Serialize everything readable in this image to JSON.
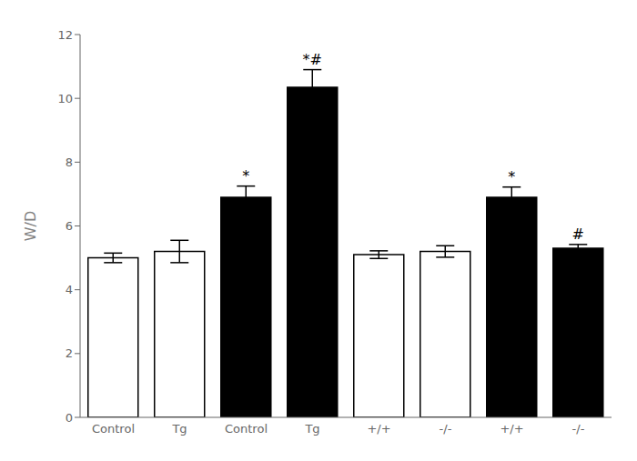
{
  "chart_data": {
    "type": "bar",
    "categories": [
      "Control",
      "Tg",
      "Control",
      "Tg",
      "+/+",
      "-/-",
      "+/+",
      "-/-"
    ],
    "values": [
      5.0,
      5.2,
      6.9,
      10.35,
      5.1,
      5.2,
      6.9,
      5.3
    ],
    "errors": [
      0.15,
      0.35,
      0.35,
      0.55,
      0.12,
      0.18,
      0.32,
      0.12
    ],
    "colors": [
      "white",
      "white",
      "black",
      "black",
      "white",
      "white",
      "black",
      "black"
    ],
    "annotations": [
      null,
      null,
      "*",
      "*#",
      null,
      null,
      "*",
      "#"
    ],
    "ylabel": "W/D",
    "ylim": [
      0,
      12
    ],
    "yticks": [
      0,
      2,
      4,
      6,
      8,
      10,
      12
    ],
    "grid": false
  }
}
